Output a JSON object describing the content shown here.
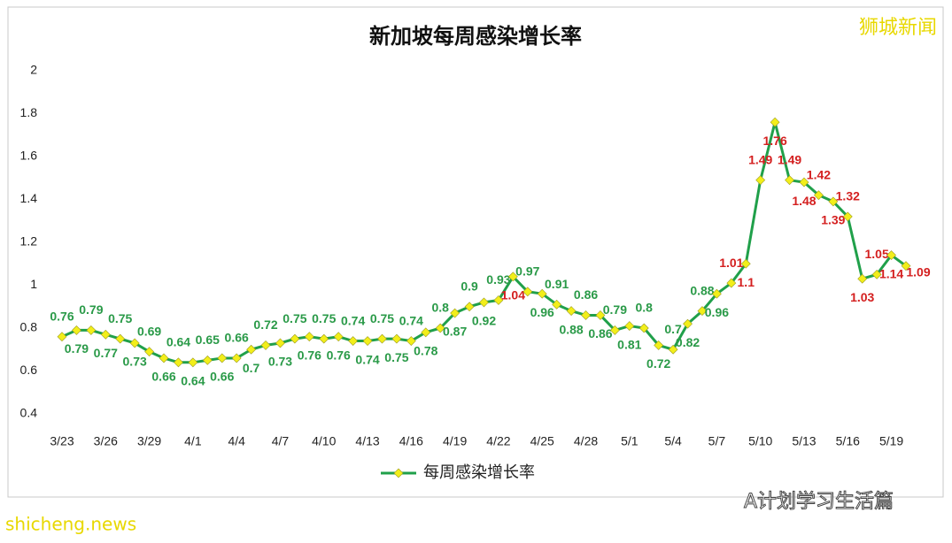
{
  "chart_data": {
    "type": "line",
    "title": "新加坡每周感染增长率",
    "categories": [
      "3/23",
      null,
      null,
      "3/26",
      null,
      null,
      "3/29",
      null,
      null,
      "4/1",
      null,
      null,
      "4/4",
      null,
      null,
      "4/7",
      null,
      null,
      "4/10",
      null,
      null,
      "4/13",
      null,
      null,
      "4/16",
      null,
      null,
      "4/19",
      null,
      null,
      "4/22",
      null,
      null,
      "4/25",
      null,
      null,
      "4/28",
      null,
      null,
      "5/1",
      null,
      null,
      "5/4",
      null,
      null,
      "5/7",
      null,
      null,
      "5/10",
      null,
      null,
      "5/13",
      null,
      null,
      "5/16",
      null,
      null,
      "5/19",
      null
    ],
    "series": [
      {
        "name": "每周感染增长率",
        "color": "#20a04a",
        "marker_color": "#f2ee1a",
        "values": [
          0.76,
          0.79,
          0.79,
          0.77,
          0.75,
          0.73,
          0.69,
          0.66,
          0.64,
          0.64,
          0.65,
          0.66,
          0.66,
          0.7,
          0.72,
          0.73,
          0.75,
          0.76,
          0.75,
          0.76,
          0.74,
          0.74,
          0.75,
          0.75,
          0.74,
          0.78,
          0.8,
          0.87,
          0.9,
          0.92,
          0.93,
          1.04,
          0.97,
          0.96,
          0.91,
          0.88,
          0.86,
          0.86,
          0.79,
          0.81,
          0.8,
          0.72,
          0.7,
          0.82,
          0.88,
          0.96,
          1.01,
          1.1,
          1.49,
          1.76,
          1.49,
          1.48,
          1.42,
          1.39,
          1.32,
          1.03,
          1.05,
          1.14,
          1.09
        ]
      }
    ],
    "label_color": "#2a9a48",
    "high_label_color": "#d41f1f",
    "ylim": [
      0.4,
      2
    ],
    "yticks": [
      0.4,
      0.6,
      0.8,
      1,
      1.2,
      1.4,
      1.6,
      1.8,
      2
    ],
    "grid": false,
    "legend": "bottom"
  },
  "watermark": "狮城新闻",
  "source_site": "shicheng.news",
  "wechat": "A计划学习生活篇"
}
